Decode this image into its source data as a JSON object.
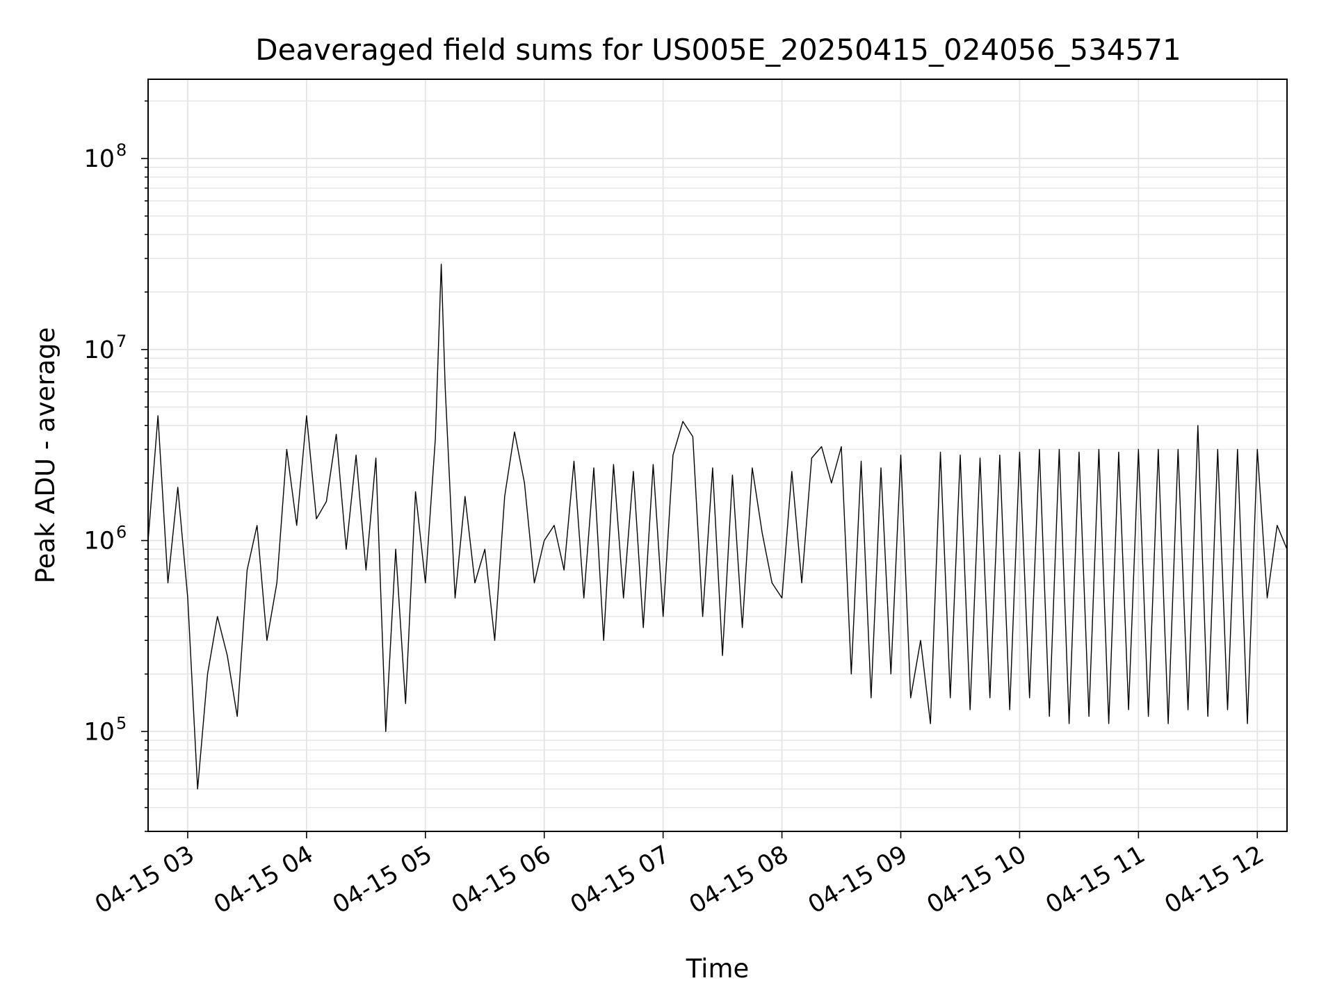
{
  "chart_data": {
    "type": "line",
    "title": "Deaveraged field sums for US005E_20250415_024056_534571",
    "xlabel": "Time",
    "ylabel": "Peak ADU - average",
    "yscale": "log",
    "grid": true,
    "color": "#000000",
    "x_ticks": [
      "04-15 03",
      "04-15 04",
      "04-15 05",
      "04-15 06",
      "04-15 07",
      "04-15 08",
      "04-15 09",
      "04-15 10",
      "04-15 11",
      "04-15 12"
    ],
    "y_ticks": [
      {
        "base": "10",
        "exp": "5",
        "value": 100000
      },
      {
        "base": "10",
        "exp": "6",
        "value": 1000000
      },
      {
        "base": "10",
        "exp": "7",
        "value": 10000000
      },
      {
        "base": "10",
        "exp": "8",
        "value": 100000000
      }
    ],
    "xlim": [
      "2025-04-15 02:40",
      "2025-04-15 12:15"
    ],
    "ylim": [
      30000,
      260000000
    ],
    "series": [
      {
        "x": [
          "02:40",
          "02:45",
          "02:50",
          "02:55",
          "03:00",
          "03:05",
          "03:10",
          "03:15",
          "03:20",
          "03:25",
          "03:30",
          "03:35",
          "03:40",
          "03:45",
          "03:50",
          "03:55",
          "04:00",
          "04:05",
          "04:10",
          "04:15",
          "04:20",
          "04:25",
          "04:30",
          "04:35",
          "04:40",
          "04:45",
          "04:50",
          "04:55",
          "05:00",
          "05:05",
          "05:08",
          "05:10",
          "05:15",
          "05:20",
          "05:25",
          "05:30",
          "05:35",
          "05:40",
          "05:45",
          "05:50",
          "05:55",
          "06:00",
          "06:05",
          "06:10",
          "06:15",
          "06:20",
          "06:25",
          "06:30",
          "06:35",
          "06:40",
          "06:45",
          "06:50",
          "06:55",
          "07:00",
          "07:05",
          "07:10",
          "07:15",
          "07:20",
          "07:25",
          "07:30",
          "07:35",
          "07:40",
          "07:45",
          "07:50",
          "07:55",
          "08:00",
          "08:05",
          "08:10",
          "08:15",
          "08:20",
          "08:25",
          "08:30",
          "08:35",
          "08:40",
          "08:45",
          "08:50",
          "08:55",
          "09:00",
          "09:05",
          "09:10",
          "09:15",
          "09:20",
          "09:25",
          "09:30",
          "09:35",
          "09:40",
          "09:45",
          "09:50",
          "09:55",
          "10:00",
          "10:05",
          "10:10",
          "10:15",
          "10:20",
          "10:25",
          "10:30",
          "10:35",
          "10:40",
          "10:45",
          "10:50",
          "10:55",
          "11:00",
          "11:05",
          "11:10",
          "11:15",
          "11:20",
          "11:25",
          "11:30",
          "11:35",
          "11:40",
          "11:45",
          "11:50",
          "11:55",
          "12:00",
          "12:05",
          "12:10",
          "12:15"
        ],
        "y": [
          1000000,
          4500000,
          600000,
          1900000,
          500000,
          50000,
          200000,
          400000,
          250000,
          120000,
          700000,
          1200000,
          300000,
          600000,
          3000000,
          1200000,
          4500000,
          1300000,
          1600000,
          3600000,
          900000,
          2800000,
          700000,
          2700000,
          100000,
          900000,
          140000,
          1800000,
          600000,
          3400000,
          28000000,
          6300000,
          500000,
          1700000,
          600000,
          900000,
          300000,
          1700000,
          3700000,
          2000000,
          600000,
          1000000,
          1200000,
          700000,
          2600000,
          500000,
          2400000,
          300000,
          2500000,
          500000,
          2300000,
          350000,
          2500000,
          400000,
          2800000,
          4200000,
          3500000,
          400000,
          2400000,
          250000,
          2200000,
          350000,
          2400000,
          1100000,
          600000,
          500000,
          2300000,
          600000,
          2700000,
          3100000,
          2000000,
          3100000,
          200000,
          2600000,
          150000,
          2400000,
          200000,
          2800000,
          150000,
          300000,
          110000,
          2900000,
          150000,
          2800000,
          130000,
          2700000,
          150000,
          2800000,
          130000,
          2900000,
          150000,
          3000000,
          120000,
          3000000,
          110000,
          2900000,
          120000,
          3000000,
          110000,
          2900000,
          130000,
          3000000,
          120000,
          3000000,
          110000,
          3000000,
          130000,
          4000000,
          120000,
          3000000,
          130000,
          3000000,
          110000,
          3000000,
          500000,
          1200000,
          900000
        ]
      }
    ]
  }
}
